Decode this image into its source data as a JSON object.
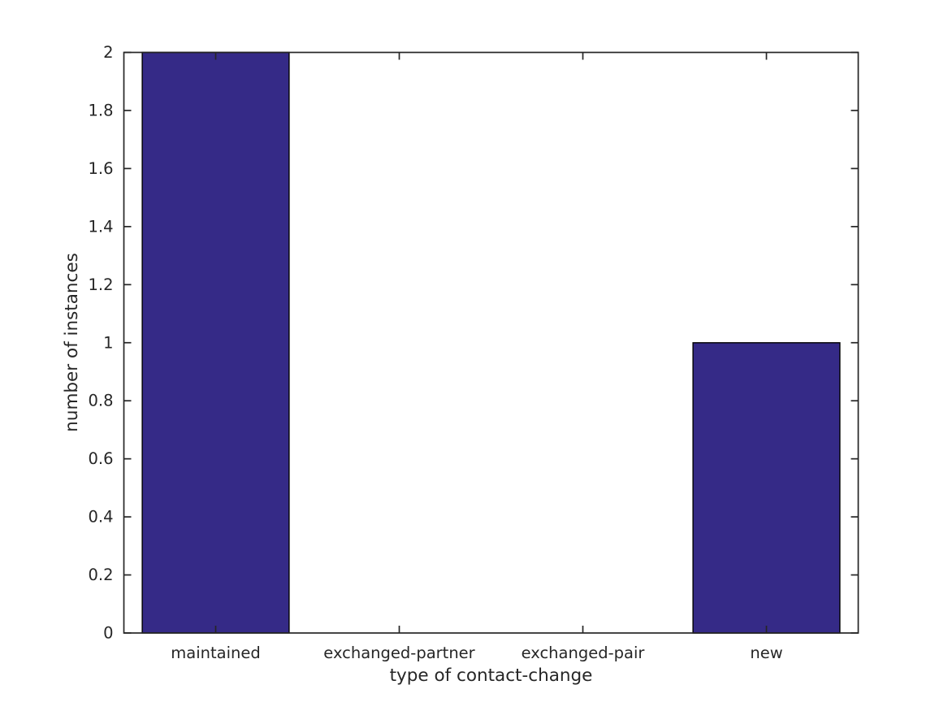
{
  "figure": {
    "background": "#ffffff"
  },
  "chart_data": {
    "type": "bar",
    "title": "",
    "xlabel": "type of contact-change",
    "ylabel": "number of instances",
    "categories": [
      "maintained",
      "exchanged-partner",
      "exchanged-pair",
      "new"
    ],
    "values": [
      2,
      0,
      0,
      1
    ],
    "ylim": [
      0,
      2
    ],
    "ytick_step": 0.2,
    "ytick_labels": [
      "0",
      "0.2",
      "0.4",
      "0.6",
      "0.8",
      "1",
      "1.2",
      "1.4",
      "1.6",
      "1.8",
      "2"
    ],
    "bar_color": "#352a87",
    "bar_edge_color": "#000000",
    "axis_color": "#262626",
    "text_color": "#262626",
    "bar_width_fraction": 0.8,
    "grid": false,
    "legend": null,
    "tick_direction": "in",
    "box": true
  }
}
